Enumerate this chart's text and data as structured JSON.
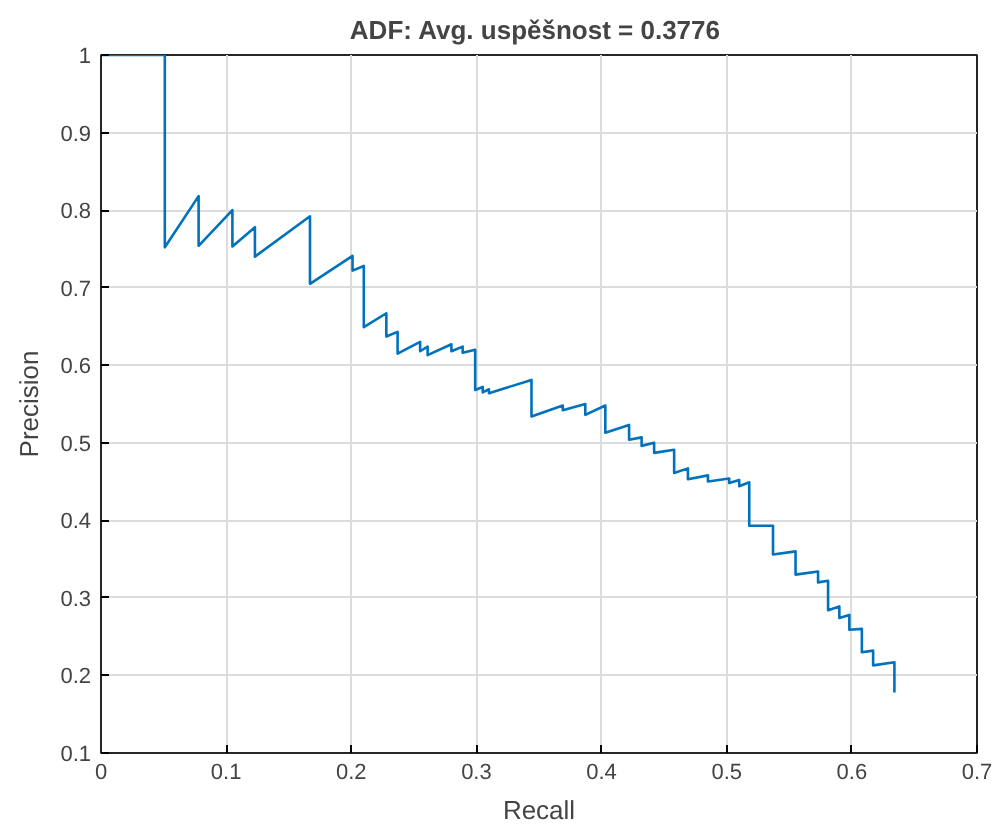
{
  "chart_data": {
    "type": "line",
    "title": "ADF: Avg. uspěšnost  = 0.3776",
    "xlabel": "Recall",
    "ylabel": "Precision",
    "xlim": [
      0,
      0.7
    ],
    "ylim": [
      0.1,
      1
    ],
    "xticks": [
      0,
      0.1,
      0.2,
      0.3,
      0.4,
      0.5,
      0.6,
      0.7
    ],
    "yticks": [
      0.1,
      0.2,
      0.3,
      0.4,
      0.5,
      0.6,
      0.7,
      0.8,
      0.9,
      1
    ],
    "grid": true,
    "marker": "none",
    "line_style": "solid",
    "series": [
      {
        "color": "#0072bd",
        "x": [
          0,
          0.051,
          0.051,
          0.078,
          0.078,
          0.105,
          0.105,
          0.123,
          0.123,
          0.167,
          0.167,
          0.201,
          0.201,
          0.21,
          0.21,
          0.228,
          0.228,
          0.237,
          0.237,
          0.255,
          0.255,
          0.261,
          0.261,
          0.28,
          0.28,
          0.289,
          0.289,
          0.299,
          0.299,
          0.305,
          0.305,
          0.31,
          0.31,
          0.344,
          0.344,
          0.369,
          0.369,
          0.387,
          0.387,
          0.403,
          0.403,
          0.422,
          0.422,
          0.432,
          0.432,
          0.442,
          0.442,
          0.458,
          0.458,
          0.469,
          0.469,
          0.485,
          0.485,
          0.502,
          0.502,
          0.51,
          0.51,
          0.518,
          0.518,
          0.537,
          0.537,
          0.555,
          0.555,
          0.573,
          0.573,
          0.581,
          0.581,
          0.59,
          0.59,
          0.598,
          0.598,
          0.608,
          0.608,
          0.617,
          0.617,
          0.634,
          0.634
        ],
        "values": [
          1,
          1,
          0.752,
          0.818,
          0.754,
          0.8,
          0.753,
          0.778,
          0.74,
          0.792,
          0.705,
          0.741,
          0.722,
          0.728,
          0.649,
          0.667,
          0.637,
          0.643,
          0.615,
          0.63,
          0.618,
          0.624,
          0.613,
          0.627,
          0.618,
          0.624,
          0.616,
          0.62,
          0.568,
          0.572,
          0.565,
          0.569,
          0.564,
          0.581,
          0.534,
          0.548,
          0.542,
          0.55,
          0.536,
          0.548,
          0.513,
          0.523,
          0.504,
          0.507,
          0.496,
          0.5,
          0.487,
          0.491,
          0.461,
          0.467,
          0.453,
          0.458,
          0.45,
          0.454,
          0.448,
          0.452,
          0.444,
          0.449,
          0.393,
          0.393,
          0.356,
          0.36,
          0.33,
          0.334,
          0.32,
          0.322,
          0.284,
          0.289,
          0.274,
          0.278,
          0.259,
          0.26,
          0.23,
          0.232,
          0.213,
          0.217,
          0.178
        ]
      }
    ]
  }
}
